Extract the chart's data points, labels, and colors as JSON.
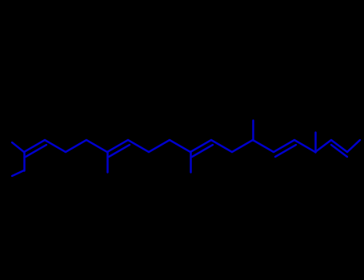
{
  "bg_color": "#000000",
  "line_color": "#0000cd",
  "linewidth": 1.5,
  "figsize": [
    4.55,
    3.5
  ],
  "dpi": 100
}
